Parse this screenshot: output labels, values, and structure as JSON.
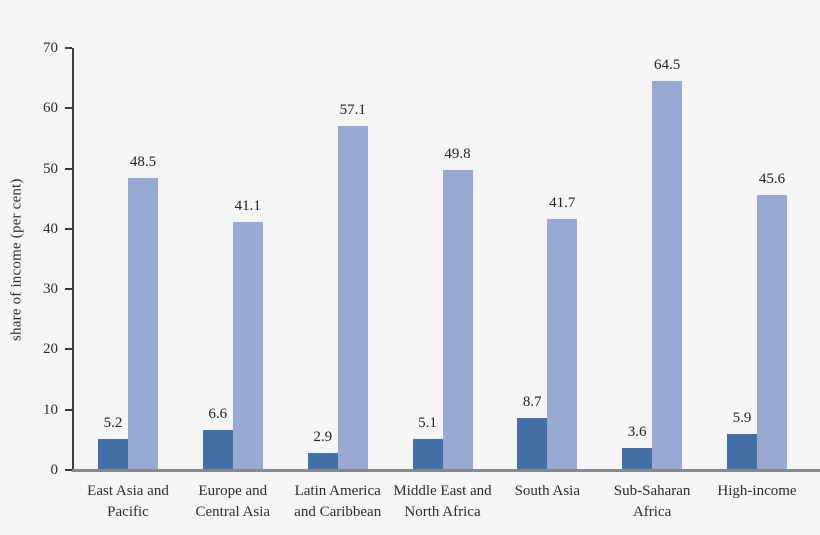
{
  "chart_data": {
    "type": "bar",
    "title": "",
    "ylabel": "share of income (per cent)",
    "ylim": [
      0,
      70
    ],
    "yticks": [
      0,
      10,
      20,
      30,
      40,
      50,
      60,
      70
    ],
    "grid": false,
    "legend": false,
    "value_labels_shown": true,
    "value_label_decimals": 1,
    "categories": [
      "East Asia and\nPacific",
      "Europe and\nCentral Asia",
      "Latin America\nand Caribbean",
      "Middle East and\nNorth Africa",
      "South Asia",
      "Sub-Saharan\nAfrica",
      "High-income"
    ],
    "series": [
      {
        "name": "dark_blue",
        "color": "#416fa6",
        "values": [
          5.2,
          6.6,
          2.9,
          5.1,
          8.7,
          3.6,
          5.9
        ]
      },
      {
        "name": "light_blue",
        "color": "#98aad3",
        "values": [
          48.5,
          41.1,
          57.1,
          49.8,
          41.7,
          64.5,
          45.6
        ]
      }
    ]
  },
  "colors": {
    "background": "#f5f5f5",
    "axis": "#3c3c3c",
    "baseline": "#85898e",
    "text": "#2d2d2d"
  }
}
